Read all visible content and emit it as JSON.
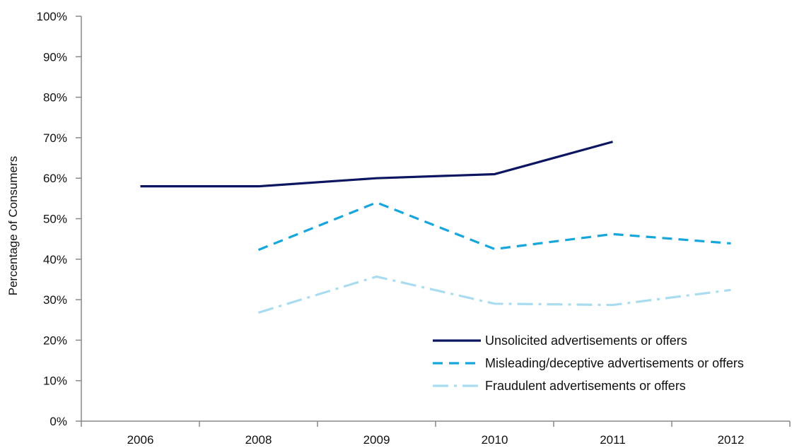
{
  "chart_data": {
    "type": "line",
    "title": "",
    "xlabel": "",
    "ylabel": "Percentage of Consumers",
    "categories": [
      "2006",
      "2008",
      "2009",
      "2010",
      "2011",
      "2012"
    ],
    "ylim": [
      0,
      100
    ],
    "yticks": [
      "0%",
      "10%",
      "20%",
      "30%",
      "40%",
      "50%",
      "60%",
      "70%",
      "80%",
      "90%",
      "100%"
    ],
    "grid": false,
    "legend_position": "bottom-right",
    "series": [
      {
        "name": "Unsolicited advertisements or offers",
        "values": [
          58,
          58,
          60,
          61,
          69,
          null
        ],
        "color": "#0b1560",
        "dash": "solid"
      },
      {
        "name": "Misleading/deceptive advertisements or offers",
        "values": [
          null,
          42.3,
          54,
          42.5,
          46.2,
          43.9
        ],
        "color": "#16a6dc",
        "dash": "dashed"
      },
      {
        "name": "Fraudulent advertisements or offers",
        "values": [
          null,
          26.8,
          35.7,
          29,
          28.7,
          32.4
        ],
        "color": "#a9dcef",
        "dash": "dash-dot"
      }
    ]
  }
}
